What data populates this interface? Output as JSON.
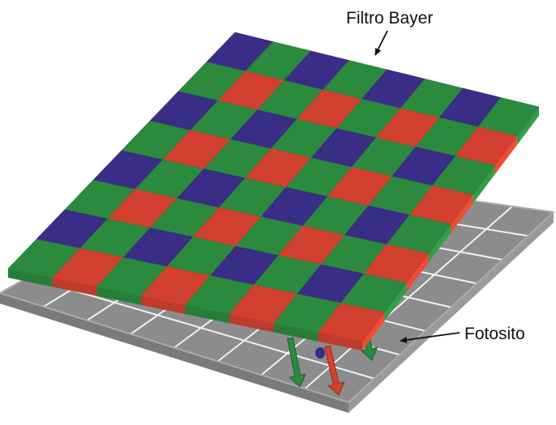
{
  "labels": {
    "bayer_filter": "Filtro Bayer",
    "photosite": "Fotosito"
  },
  "colors": {
    "red": "#d2412f",
    "green": "#2b8a3e",
    "blue": "#3a2d86",
    "photosite_top": "#8c8c8c",
    "photosite_edge": "#aaaaaa",
    "photosite_grid": "#f2f2f2",
    "label_text": "#111111"
  },
  "bayer_filter": {
    "rows": 8,
    "cols": 8,
    "pattern": [
      [
        "blue",
        "green"
      ],
      [
        "green",
        "red"
      ]
    ]
  },
  "photosite_grid": {
    "rows": 8,
    "cols": 8
  },
  "light_arrows": [
    {
      "color": "green"
    },
    {
      "color": "red"
    },
    {
      "color": "blue"
    },
    {
      "color": "green"
    }
  ]
}
